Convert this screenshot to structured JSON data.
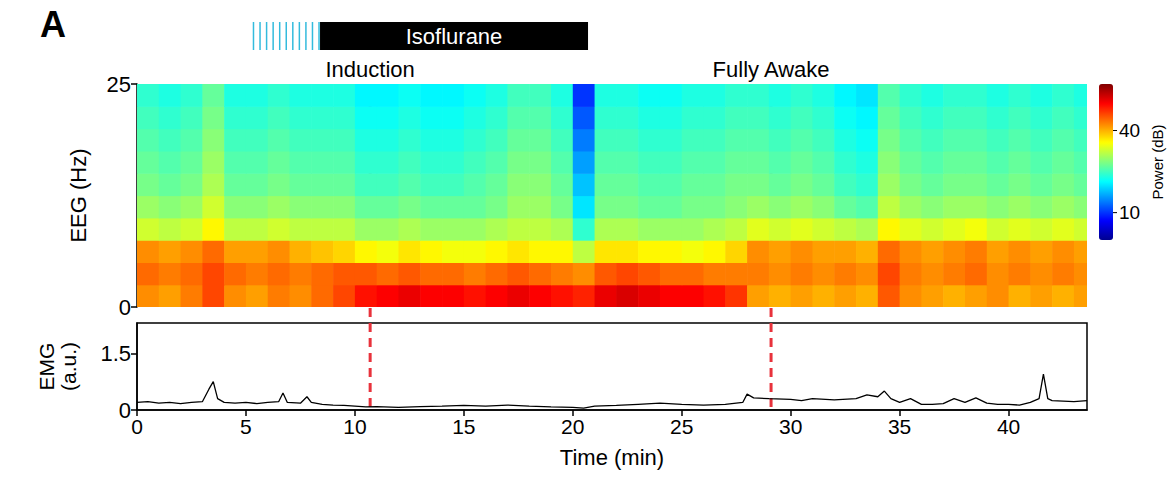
{
  "chart_data": [
    {
      "type": "heatmap",
      "panel": "A",
      "ylabel": "EEG (Hz)",
      "xlim": [
        0,
        43.6
      ],
      "ylim": [
        0,
        25
      ],
      "yticks": [
        0,
        25
      ],
      "tick_labels": "y",
      "grid": false,
      "isoflurane": {
        "label": "Isoflurane",
        "induction_start": 5.3,
        "start": 8.4,
        "end": 20.7
      },
      "annotations": [
        {
          "text": "Induction",
          "x": 10.7
        },
        {
          "text": "Fully Awake",
          "x": 29.1
        }
      ],
      "colorbar": {
        "label": "Power (dB)",
        "range": [
          0,
          57
        ],
        "ticks": [
          10,
          40
        ]
      },
      "t": [
        0.5,
        1.5,
        2.5,
        3.5,
        4.5,
        5.5,
        6.5,
        7.5,
        8.5,
        9.5,
        10.5,
        11.5,
        12.5,
        13.5,
        14.5,
        15.5,
        16.5,
        17.5,
        18.5,
        19.5,
        20.5,
        21.5,
        22.5,
        23.5,
        24.5,
        25.5,
        26.5,
        27.5,
        28.5,
        29.5,
        30.5,
        31.5,
        32.5,
        33.5,
        34.5,
        35.5,
        36.5,
        37.5,
        38.5,
        39.5,
        40.5,
        41.5,
        42.5,
        43.5
      ],
      "f": [
        1.25,
        3.75,
        6.25,
        8.75,
        11.25,
        13.75,
        16.25,
        18.75,
        21.25,
        23.75
      ],
      "power": [
        [
          42,
          41,
          43,
          46,
          42,
          41,
          43,
          42,
          44,
          46,
          49,
          50,
          51,
          50,
          50,
          49,
          50,
          51,
          50,
          49,
          48,
          51,
          52,
          51,
          50,
          50,
          49,
          47,
          41,
          40,
          41,
          40,
          41,
          40,
          45,
          42,
          41,
          40,
          41,
          42,
          40,
          41,
          40,
          41
        ],
        [
          44,
          43,
          44,
          46,
          44,
          43,
          44,
          43,
          44,
          45,
          45,
          44,
          45,
          44,
          44,
          43,
          44,
          45,
          44,
          43,
          42,
          45,
          46,
          45,
          44,
          44,
          43,
          43,
          43,
          42,
          43,
          42,
          43,
          42,
          46,
          43,
          42,
          43,
          44,
          42,
          43,
          42,
          43,
          42
        ],
        [
          42,
          41,
          42,
          44,
          41,
          41,
          42,
          40,
          39,
          38,
          36,
          35,
          37,
          36,
          35,
          35,
          36,
          37,
          36,
          36,
          32,
          37,
          37,
          36,
          36,
          35,
          36,
          38,
          42,
          41,
          42,
          41,
          41,
          40,
          44,
          42,
          41,
          42,
          43,
          41,
          42,
          41,
          42,
          41
        ],
        [
          33,
          32,
          33,
          36,
          32,
          32,
          33,
          32,
          32,
          32,
          30,
          30,
          31,
          30,
          30,
          30,
          31,
          32,
          32,
          31,
          24,
          31,
          31,
          30,
          30,
          30,
          31,
          32,
          34,
          33,
          34,
          33,
          32,
          31,
          36,
          34,
          33,
          34,
          35,
          33,
          34,
          33,
          34,
          33
        ],
        [
          30,
          29,
          30,
          33,
          29,
          29,
          30,
          29,
          29,
          29,
          27,
          27,
          28,
          27,
          27,
          27,
          28,
          30,
          30,
          28,
          20,
          28,
          28,
          27,
          27,
          28,
          28,
          29,
          30,
          29,
          30,
          29,
          27,
          26,
          32,
          30,
          29,
          30,
          30,
          29,
          30,
          29,
          30,
          29
        ],
        [
          28,
          27,
          28,
          31,
          27,
          27,
          28,
          27,
          27,
          27,
          25,
          25,
          26,
          25,
          25,
          26,
          27,
          29,
          29,
          27,
          18,
          27,
          27,
          26,
          26,
          27,
          27,
          28,
          28,
          27,
          28,
          27,
          25,
          24,
          30,
          28,
          27,
          28,
          28,
          27,
          28,
          27,
          28,
          27
        ],
        [
          27,
          26,
          27,
          30,
          26,
          26,
          27,
          26,
          26,
          26,
          24,
          24,
          25,
          24,
          24,
          25,
          26,
          28,
          28,
          26,
          16,
          26,
          26,
          25,
          25,
          26,
          26,
          27,
          27,
          26,
          27,
          26,
          24,
          23,
          29,
          27,
          26,
          27,
          27,
          26,
          27,
          26,
          27,
          26
        ],
        [
          26,
          25,
          26,
          29,
          25,
          25,
          26,
          25,
          25,
          25,
          23,
          23,
          24,
          23,
          23,
          24,
          25,
          27,
          27,
          25,
          14,
          25,
          25,
          24,
          24,
          25,
          25,
          26,
          26,
          25,
          26,
          25,
          23,
          22,
          28,
          26,
          25,
          26,
          26,
          25,
          26,
          25,
          26,
          25
        ],
        [
          25,
          24,
          25,
          28,
          24,
          24,
          25,
          24,
          24,
          24,
          22,
          22,
          23,
          22,
          22,
          23,
          24,
          26,
          26,
          24,
          12,
          24,
          24,
          23,
          23,
          24,
          24,
          25,
          25,
          24,
          25,
          24,
          22,
          21,
          27,
          25,
          24,
          25,
          25,
          24,
          25,
          24,
          25,
          24
        ],
        [
          24,
          23,
          24,
          27,
          23,
          23,
          24,
          23,
          23,
          23,
          21,
          21,
          22,
          21,
          21,
          22,
          23,
          25,
          25,
          23,
          10,
          23,
          23,
          22,
          22,
          23,
          23,
          24,
          24,
          23,
          24,
          23,
          21,
          20,
          26,
          24,
          23,
          24,
          24,
          23,
          24,
          23,
          24,
          23
        ]
      ]
    },
    {
      "type": "line",
      "ylabel": "EMG (a.u.)",
      "xlabel": "Time (min)",
      "xlim": [
        0,
        43.6
      ],
      "xticks": [
        0,
        5,
        10,
        15,
        20,
        25,
        30,
        35,
        40
      ],
      "ylim": [
        0,
        2.3
      ],
      "yticks": [
        0,
        1.5
      ],
      "grid": false,
      "color": "#000000",
      "x": [
        0,
        0.5,
        1,
        1.5,
        2,
        2.5,
        3,
        3.3,
        3.5,
        3.7,
        4,
        4.5,
        5,
        5.5,
        6,
        6.5,
        6.7,
        6.9,
        7.5,
        7.8,
        8,
        8.5,
        9,
        9.5,
        10,
        10.5,
        11,
        12,
        13,
        14,
        15,
        16,
        17,
        18,
        19,
        20,
        20.5,
        21,
        22,
        23,
        24,
        25,
        26,
        27,
        27.8,
        28,
        28.3,
        29,
        30,
        30.5,
        31,
        32,
        33,
        33.5,
        34,
        34.3,
        34.6,
        35,
        35.5,
        36,
        36.5,
        37,
        37.5,
        38,
        38.5,
        39,
        39.5,
        40,
        40.5,
        41,
        41.4,
        41.6,
        41.8,
        42,
        43,
        43.6
      ],
      "values": [
        0.2,
        0.22,
        0.18,
        0.2,
        0.17,
        0.2,
        0.22,
        0.55,
        0.75,
        0.3,
        0.2,
        0.18,
        0.2,
        0.17,
        0.2,
        0.22,
        0.45,
        0.2,
        0.18,
        0.35,
        0.2,
        0.15,
        0.13,
        0.12,
        0.1,
        0.08,
        0.09,
        0.07,
        0.09,
        0.1,
        0.12,
        0.1,
        0.13,
        0.1,
        0.08,
        0.07,
        0.05,
        0.1,
        0.12,
        0.15,
        0.18,
        0.15,
        0.13,
        0.15,
        0.2,
        0.42,
        0.32,
        0.3,
        0.28,
        0.25,
        0.3,
        0.27,
        0.3,
        0.4,
        0.35,
        0.5,
        0.3,
        0.2,
        0.3,
        0.15,
        0.15,
        0.17,
        0.3,
        0.2,
        0.32,
        0.18,
        0.15,
        0.15,
        0.13,
        0.2,
        0.3,
        0.95,
        0.3,
        0.25,
        0.22,
        0.25
      ]
    }
  ]
}
